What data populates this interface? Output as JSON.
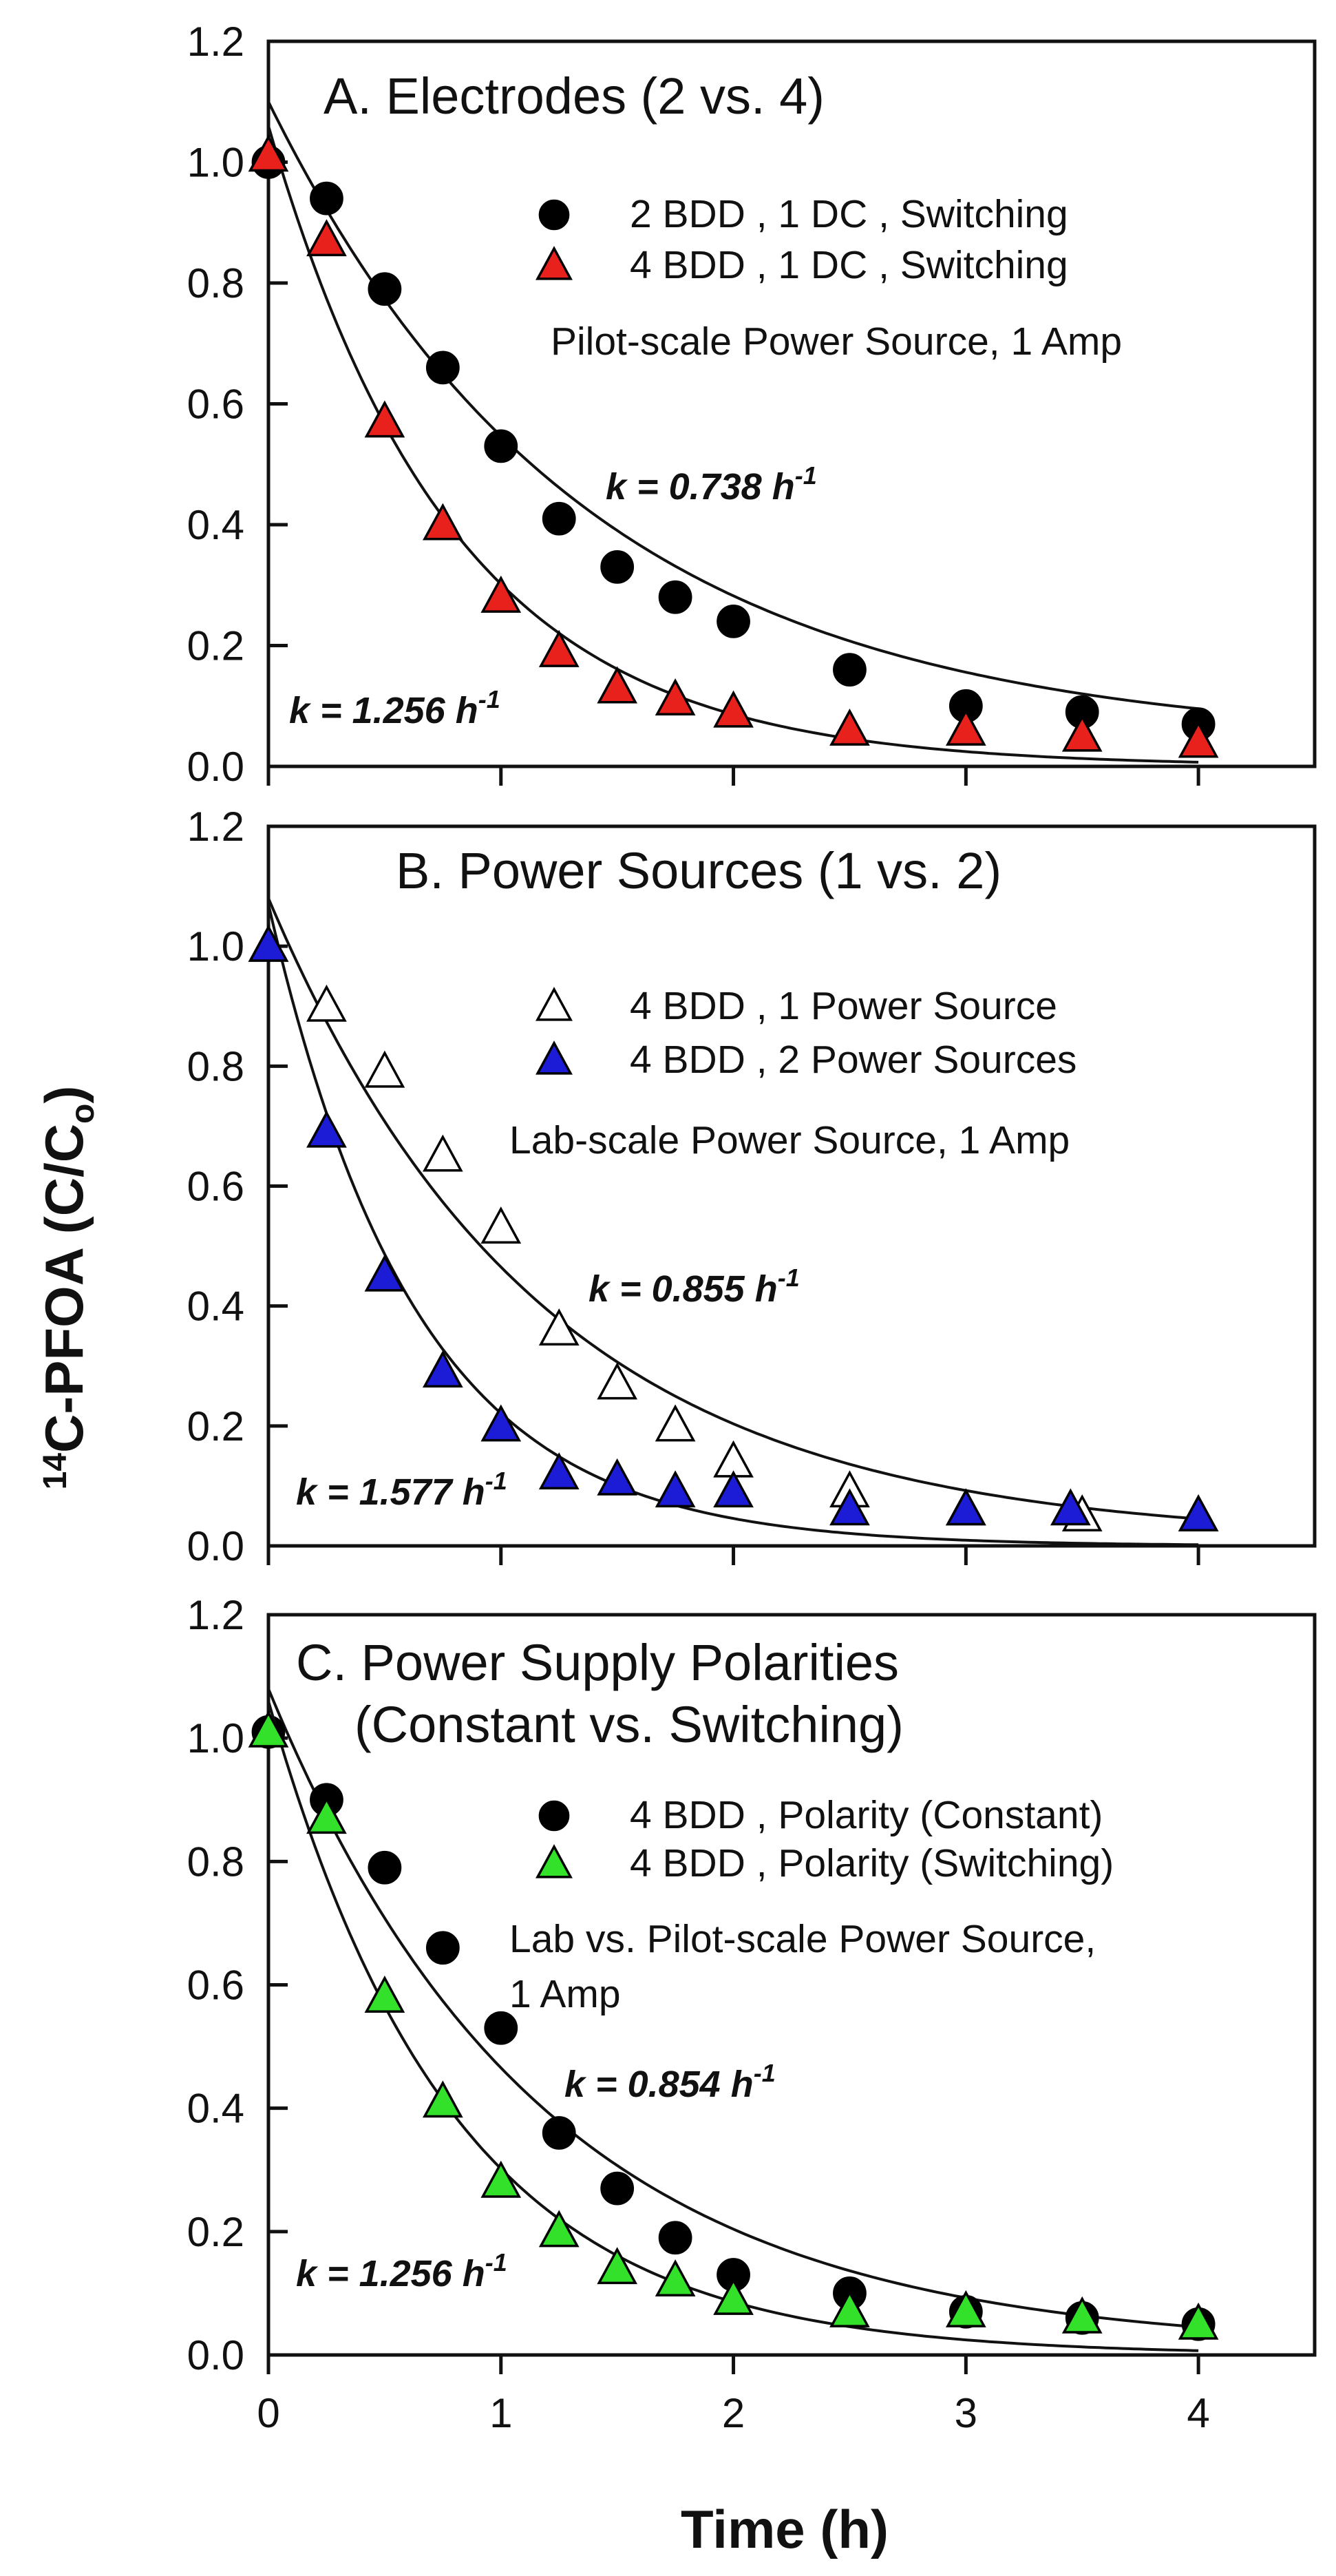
{
  "chart_data": {
    "type": "scatter",
    "layout": "three stacked panels sharing the x axis",
    "xlabel": "Time (h)",
    "ylabel_superscript": "14",
    "ylabel_main": "C-PFOA (C/C",
    "ylabel_subscript": "o",
    "ylabel_tail": ")",
    "x_range": [
      0,
      4.5
    ],
    "x_ticks": [
      0,
      1,
      2,
      3,
      4
    ],
    "y_range": [
      0,
      1.2
    ],
    "y_ticks": [
      "0.0",
      "0.2",
      "0.4",
      "0.6",
      "0.8",
      "1.0",
      "1.2"
    ],
    "panels": [
      {
        "title_lines": [
          "A. Electrodes (2 vs. 4)"
        ],
        "notes": [
          "Pilot-scale Power Source, 1 Amp"
        ],
        "series": [
          {
            "name": "2 BDD , 1 DC , Switching",
            "marker": "circle",
            "fill": "#000000",
            "x": [
              0,
              0.25,
              0.5,
              0.75,
              1.0,
              1.25,
              1.5,
              1.75,
              2.0,
              2.5,
              3.0,
              3.5,
              4.0
            ],
            "y": [
              1.0,
              0.94,
              0.79,
              0.66,
              0.53,
              0.41,
              0.33,
              0.28,
              0.24,
              0.16,
              0.1,
              0.09,
              0.07
            ],
            "rate_label": "k = 0.738 h",
            "rate_sup": "-1",
            "fit": {
              "c0": 1.06,
              "k": 0.738,
              "offset": 0.04
            }
          },
          {
            "name": "4 BDD , 1 DC , Switching",
            "marker": "triangle",
            "fill": "#e8211d",
            "x": [
              0,
              0.25,
              0.5,
              0.75,
              1.0,
              1.25,
              1.5,
              1.75,
              2.0,
              2.5,
              3.0,
              3.5,
              4.0
            ],
            "y": [
              1.01,
              0.87,
              0.57,
              0.4,
              0.28,
              0.19,
              0.13,
              0.11,
              0.09,
              0.06,
              0.06,
              0.05,
              0.04
            ],
            "rate_label": "k = 1.256 h",
            "rate_sup": "-1",
            "fit": {
              "c0": 1.06,
              "k": 1.256,
              "offset": 0.0
            }
          }
        ]
      },
      {
        "title_lines": [
          "B. Power Sources (1 vs. 2)"
        ],
        "notes": [
          "Lab-scale Power Source, 1 Amp"
        ],
        "series": [
          {
            "name": "4 BDD , 1 Power Source",
            "marker": "triangle",
            "fill": "#ffffff",
            "x": [
              0,
              0.25,
              0.5,
              0.75,
              1.0,
              1.25,
              1.5,
              1.75,
              2.0,
              2.5,
              3.0,
              3.5,
              4.0
            ],
            "y": [
              1.0,
              0.9,
              0.79,
              0.65,
              0.53,
              0.36,
              0.27,
              0.2,
              0.14,
              0.09,
              0.06,
              0.05,
              0.05
            ],
            "rate_label": "k = 0.855 h",
            "rate_sup": "-1",
            "fit": {
              "c0": 1.07,
              "k": 0.855,
              "offset": 0.01
            }
          },
          {
            "name": "4 BDD , 2 Power Sources",
            "marker": "triangle",
            "fill": "#1c1cd6",
            "x": [
              0,
              0.25,
              0.5,
              0.75,
              1.0,
              1.25,
              1.5,
              1.75,
              2.0,
              2.5,
              3.0,
              3.45,
              4.0
            ],
            "y": [
              1.0,
              0.69,
              0.45,
              0.29,
              0.2,
              0.12,
              0.11,
              0.09,
              0.09,
              0.06,
              0.06,
              0.06,
              0.05
            ],
            "rate_label": "k = 1.577 h",
            "rate_sup": "-1",
            "fit": {
              "c0": 1.07,
              "k": 1.577,
              "offset": 0.0
            }
          }
        ]
      },
      {
        "title_lines": [
          "C. Power Supply Polarities",
          "(Constant vs. Switching)"
        ],
        "notes": [
          "Lab vs. Pilot-scale Power Source,",
          "1 Amp"
        ],
        "series": [
          {
            "name": "4 BDD , Polarity (Constant)",
            "marker": "circle",
            "fill": "#000000",
            "x": [
              0,
              0.25,
              0.5,
              0.75,
              1.0,
              1.25,
              1.5,
              1.75,
              2.0,
              2.5,
              3.0,
              3.5,
              4.0
            ],
            "y": [
              1.01,
              0.9,
              0.79,
              0.66,
              0.53,
              0.36,
              0.27,
              0.19,
              0.13,
              0.1,
              0.07,
              0.06,
              0.05
            ],
            "rate_label": "k = 0.854 h",
            "rate_sup": "-1",
            "fit": {
              "c0": 1.07,
              "k": 0.854,
              "offset": 0.01
            }
          },
          {
            "name": "4 BDD , Polarity (Switching)",
            "marker": "triangle",
            "fill": "#33e12a",
            "x": [
              0,
              0.25,
              0.5,
              0.75,
              1.0,
              1.25,
              1.5,
              1.75,
              2.0,
              2.5,
              3.0,
              3.5,
              4.0
            ],
            "y": [
              1.01,
              0.87,
              0.58,
              0.41,
              0.28,
              0.2,
              0.14,
              0.12,
              0.09,
              0.07,
              0.07,
              0.06,
              0.05
            ],
            "rate_label": "k = 1.256 h",
            "rate_sup": "-1",
            "fit": {
              "c0": 1.06,
              "k": 1.256,
              "offset": 0.0
            }
          }
        ]
      }
    ]
  }
}
